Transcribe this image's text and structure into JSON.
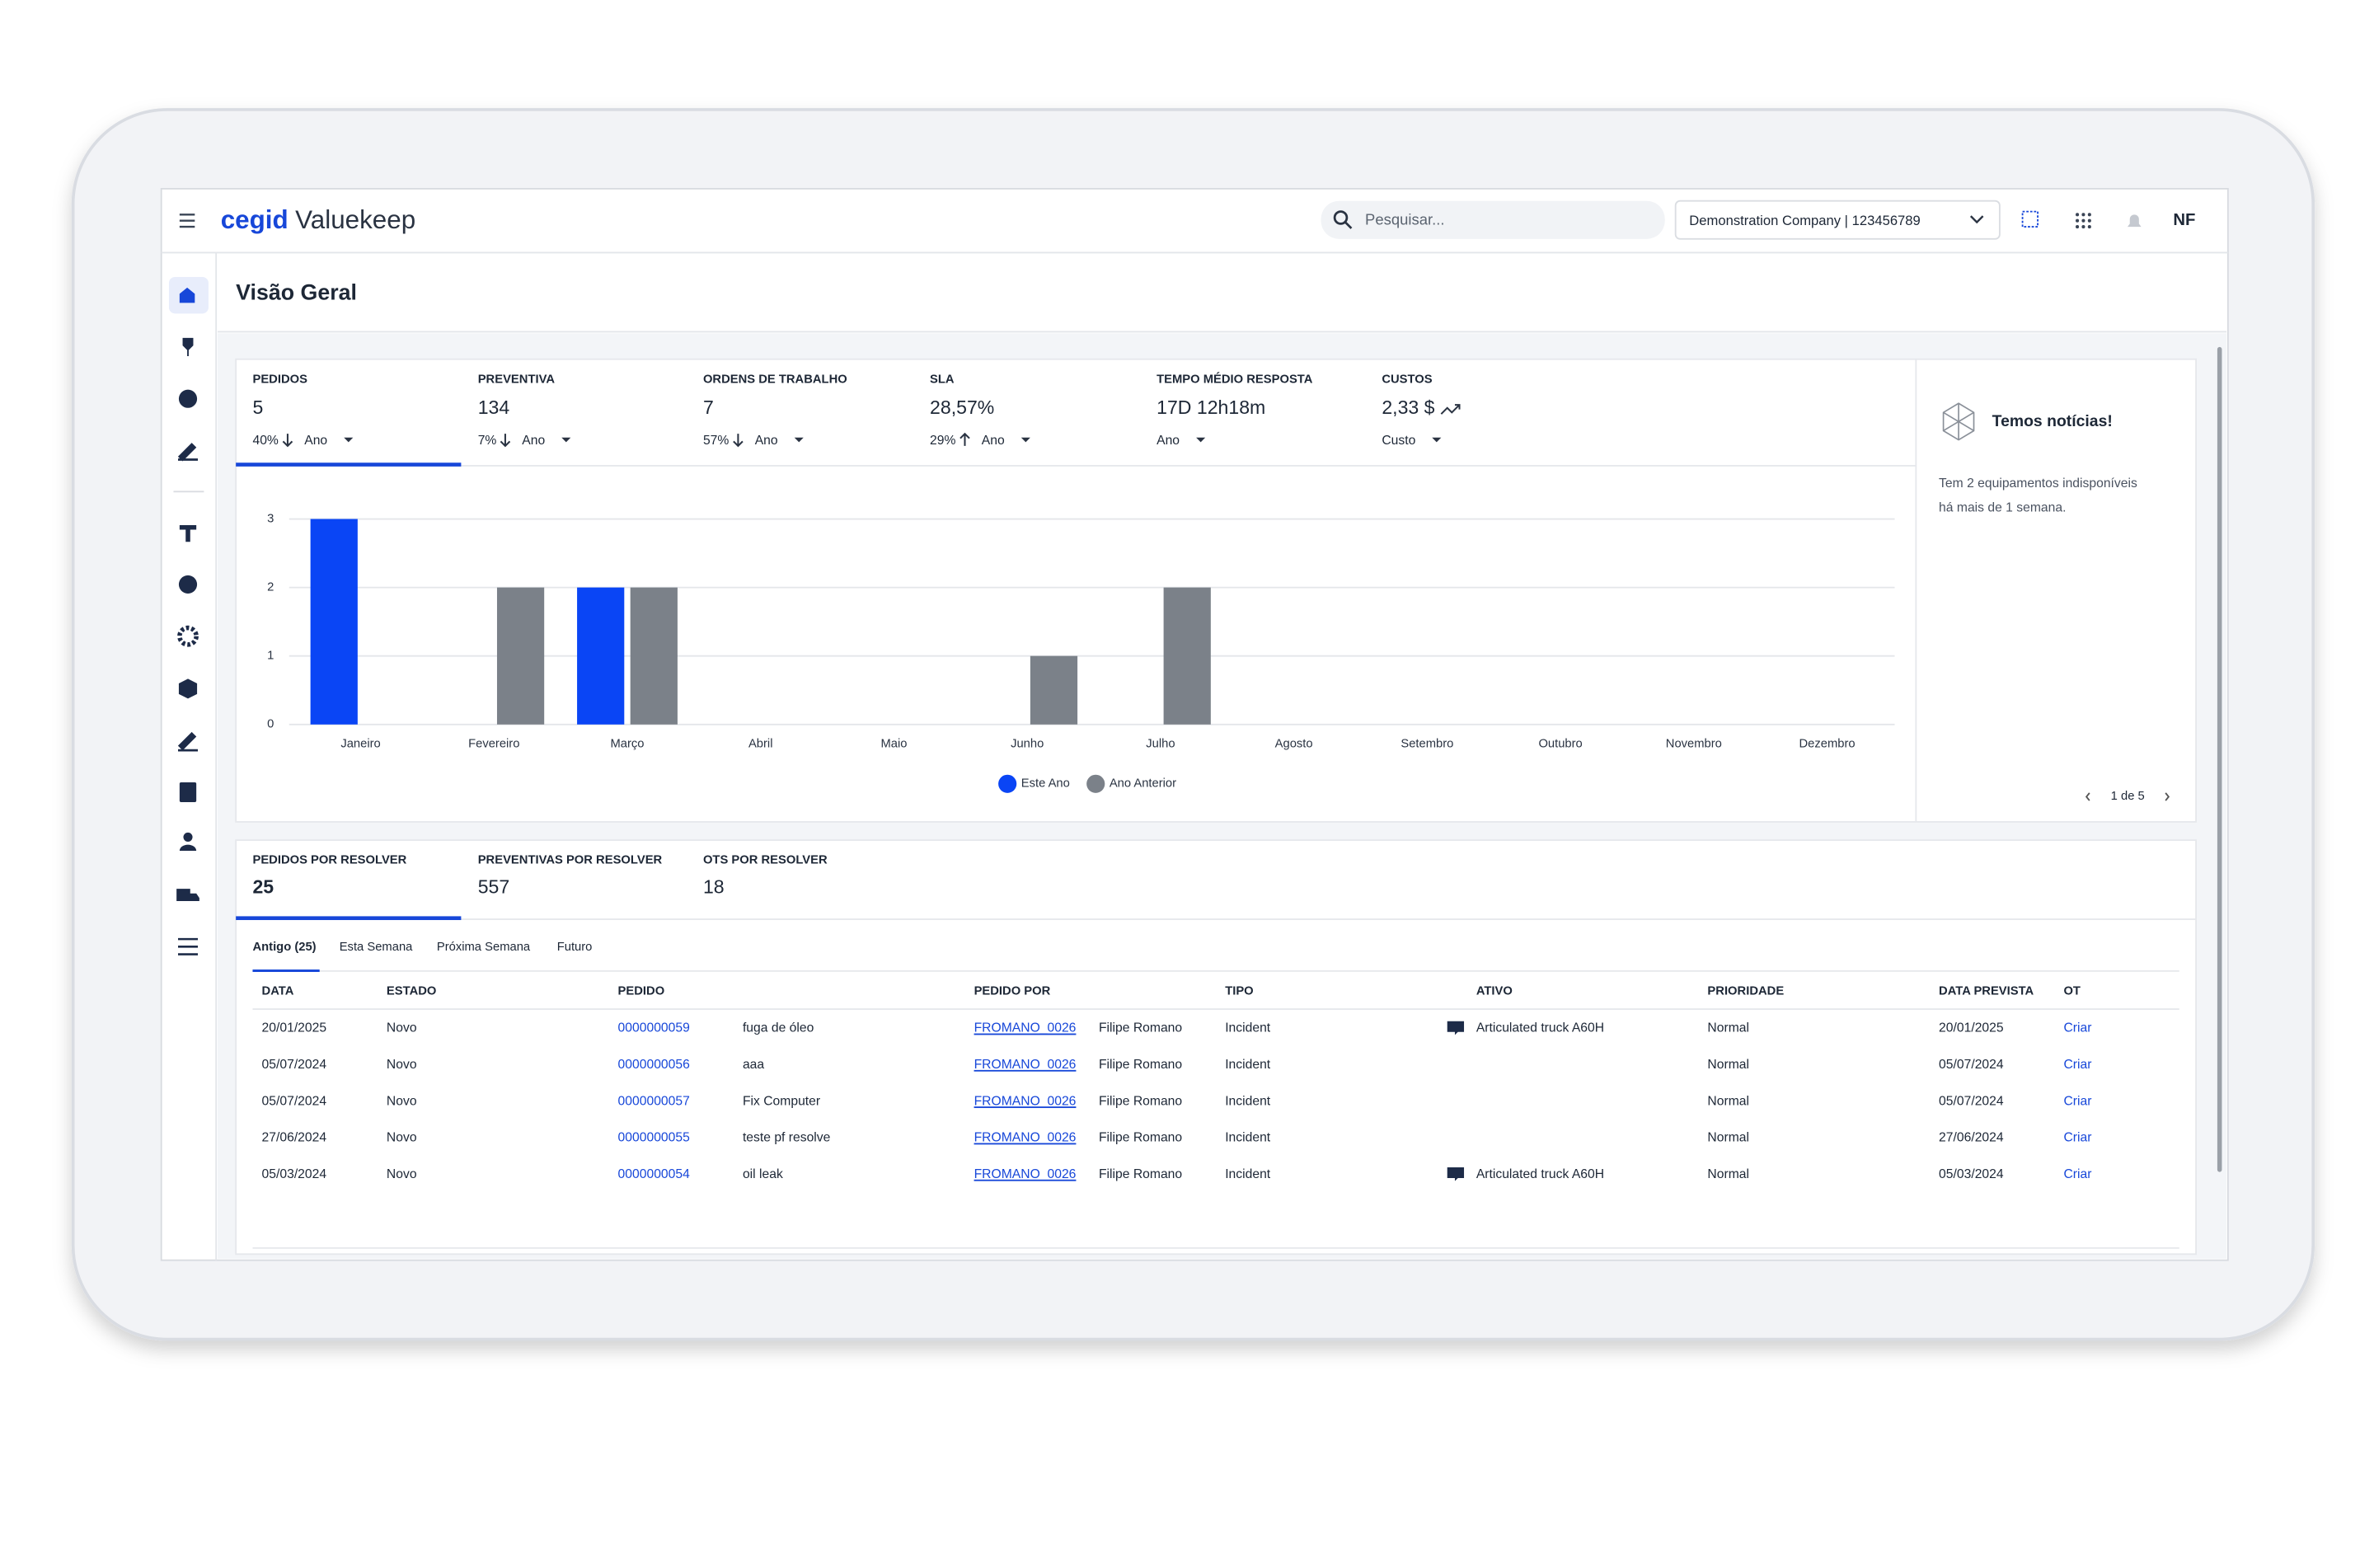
{
  "header": {
    "brand": "cegid",
    "product": "Valuekeep",
    "search_placeholder": "Pesquisar...",
    "company": "Demonstration Company | 123456789",
    "user": "NF"
  },
  "page_title": "Visão Geral",
  "kpis": [
    {
      "label": "PEDIDOS",
      "value": "5",
      "change": "40%",
      "trend": "down",
      "period": "Ano"
    },
    {
      "label": "PREVENTIVA",
      "value": "134",
      "change": "7%",
      "trend": "down",
      "period": "Ano"
    },
    {
      "label": "ORDENS DE TRABALHO",
      "value": "7",
      "change": "57%",
      "trend": "down",
      "period": "Ano"
    },
    {
      "label": "SLA",
      "value": "28,57%",
      "change": "29%",
      "trend": "up",
      "period": "Ano"
    },
    {
      "label": "TEMPO MÉDIO RESPOSTA",
      "value": "17D 12h18m",
      "period": "Ano"
    },
    {
      "label": "CUSTOS",
      "value": "2,33 $",
      "trend": "rising",
      "period": "Custo"
    }
  ],
  "chart_data": {
    "type": "bar",
    "categories": [
      "Janeiro",
      "Fevereiro",
      "Março",
      "Abril",
      "Maio",
      "Junho",
      "Julho",
      "Agosto",
      "Setembro",
      "Outubro",
      "Novembro",
      "Dezembro"
    ],
    "series": [
      {
        "name": "Este Ano",
        "color": "#0a45f5",
        "values": [
          3,
          0,
          2,
          0,
          0,
          0,
          0,
          0,
          0,
          0,
          0,
          0
        ]
      },
      {
        "name": "Ano Anterior",
        "color": "#7b8189",
        "values": [
          0,
          2,
          2,
          0,
          0,
          1,
          2,
          0,
          0,
          0,
          0,
          0
        ]
      }
    ],
    "ylim": [
      0,
      3
    ],
    "yticks": [
      0,
      1,
      2,
      3
    ],
    "grid": true,
    "legend": "bottom"
  },
  "news": {
    "title": "Temos notícias!",
    "text": "Tem 2 equipamentos indisponíveis há mais de 1 semana.",
    "pagination": "1 de 5"
  },
  "backlog": [
    {
      "label": "PEDIDOS POR RESOLVER",
      "value": "25"
    },
    {
      "label": "PREVENTIVAS POR RESOLVER",
      "value": "557"
    },
    {
      "label": "OTS POR RESOLVER",
      "value": "18"
    }
  ],
  "subtabs": [
    "Antigo (25)",
    "Esta Semana",
    "Próxima Semana",
    "Futuro"
  ],
  "table": {
    "columns": [
      "DATA",
      "ESTADO",
      "PEDIDO",
      "PEDIDO POR",
      "TIPO",
      "ATIVO",
      "PRIORIDADE",
      "DATA PREVISTA",
      "OT"
    ],
    "rows": [
      [
        "20/01/2025",
        "Novo",
        "0000000059",
        "fuga de óleo",
        "FROMANO_0026",
        "Filipe Romano",
        "Incident",
        "Articulated truck A60H",
        "Normal",
        "20/01/2025",
        "Criar"
      ],
      [
        "05/07/2024",
        "Novo",
        "0000000056",
        "aaa",
        "FROMANO_0026",
        "Filipe Romano",
        "Incident",
        null,
        "Normal",
        "05/07/2024",
        "Criar"
      ],
      [
        "05/07/2024",
        "Novo",
        "0000000057",
        "Fix Computer",
        "FROMANO_0026",
        "Filipe Romano",
        "Incident",
        null,
        "Normal",
        "05/07/2024",
        "Criar"
      ],
      [
        "27/06/2024",
        "Novo",
        "0000000055",
        "teste pf resolve",
        "FROMANO_0026",
        "Filipe Romano",
        "Incident",
        null,
        "Normal",
        "27/06/2024",
        "Criar"
      ],
      [
        "05/03/2024",
        "Novo",
        "0000000054",
        "oil leak",
        "FROMANO_0026",
        "Filipe Romano",
        "Incident",
        "Articulated truck A60H",
        "Normal",
        "05/03/2024",
        "Criar"
      ]
    ]
  }
}
